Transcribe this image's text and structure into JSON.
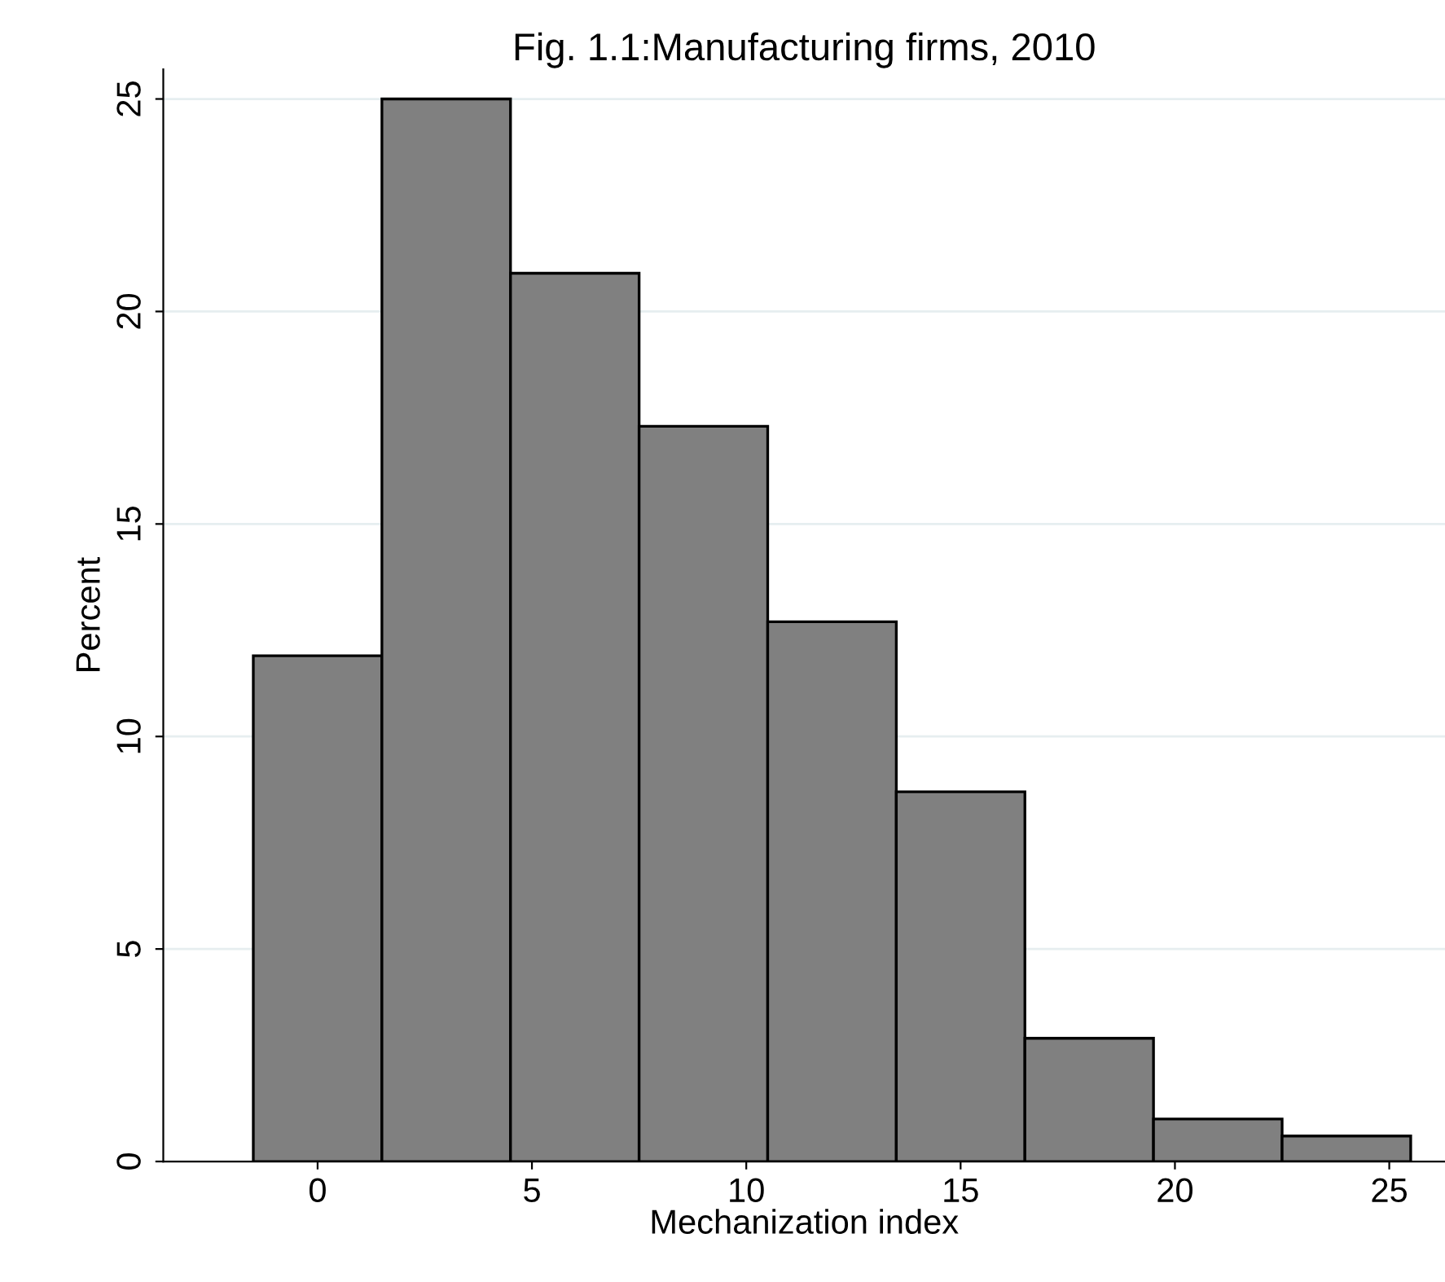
{
  "chart_data": {
    "type": "histogram",
    "title": "Fig. 1.1:Manufacturing firms, 2010",
    "xlabel": "Mechanization index",
    "ylabel": "Percent",
    "bins": [
      -1.5,
      1.5,
      4.5,
      7.5,
      10.5,
      13.5,
      16.5,
      19.5,
      22.5,
      25.5
    ],
    "values": [
      11.9,
      25.0,
      20.9,
      17.3,
      12.7,
      8.7,
      2.9,
      1.0,
      0.6
    ],
    "color": "#808080",
    "xlim": [
      -3.6,
      26.3
    ],
    "ylim": [
      0,
      25.7
    ],
    "xticks": [
      0,
      5,
      10,
      15,
      20,
      25
    ],
    "yticks": [
      0,
      5,
      10,
      15,
      20,
      25
    ],
    "grid": "y"
  }
}
